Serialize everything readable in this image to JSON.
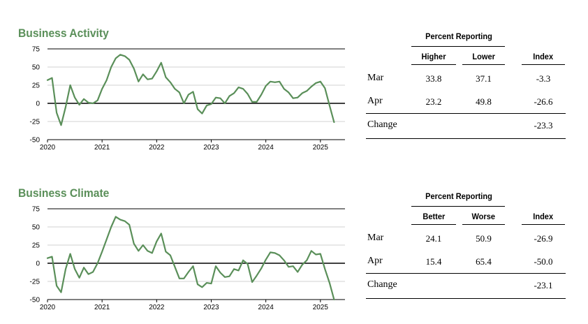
{
  "chart_data": [
    {
      "type": "line",
      "title": "Business Activity",
      "xlabel": "",
      "ylabel": "",
      "xlim": [
        2020.0,
        2025.45
      ],
      "ylim": [
        -50,
        75
      ],
      "x_ticks": [
        "2020",
        "2021",
        "2022",
        "2023",
        "2024",
        "2025"
      ],
      "y_ticks": [
        "75",
        "50",
        "25",
        "0",
        "-25",
        "-50"
      ],
      "grid": true,
      "line_color": "#5a8f59",
      "series": [
        {
          "x": [
            2020.0,
            2020.083,
            2020.167,
            2020.25,
            2020.333,
            2020.417,
            2020.5,
            2020.583,
            2020.667,
            2020.75,
            2020.833,
            2020.917,
            2021.0,
            2021.083,
            2021.167,
            2021.25,
            2021.333,
            2021.417,
            2021.5,
            2021.583,
            2021.667,
            2021.75,
            2021.833,
            2021.917,
            2022.0,
            2022.083,
            2022.167,
            2022.25,
            2022.333,
            2022.417,
            2022.5,
            2022.583,
            2022.667,
            2022.75,
            2022.833,
            2022.917,
            2023.0,
            2023.083,
            2023.167,
            2023.25,
            2023.333,
            2023.417,
            2023.5,
            2023.583,
            2023.667,
            2023.75,
            2023.833,
            2023.917,
            2024.0,
            2024.083,
            2024.167,
            2024.25,
            2024.333,
            2024.417,
            2024.5,
            2024.583,
            2024.667,
            2024.75,
            2024.833,
            2024.917,
            2025.0,
            2025.083,
            2025.167,
            2025.25
          ],
          "y": [
            32,
            35,
            -13,
            -30,
            -5,
            25,
            8,
            -2,
            6,
            1,
            0,
            4,
            20,
            32,
            50,
            62,
            67,
            65,
            60,
            48,
            30,
            40,
            33,
            34,
            44,
            56,
            36,
            29,
            20,
            15,
            0,
            12,
            16,
            -8,
            -14,
            -3,
            -1,
            8,
            7,
            0,
            10,
            14,
            22,
            20,
            13,
            2,
            2,
            12,
            24,
            30,
            29,
            30,
            20,
            15,
            7,
            8,
            14,
            17,
            23,
            28,
            30,
            21,
            -3,
            -26
          ]
        }
      ]
    },
    {
      "type": "line",
      "title": "Business Climate",
      "xlabel": "",
      "ylabel": "",
      "xlim": [
        2020.0,
        2025.45
      ],
      "ylim": [
        -50,
        75
      ],
      "x_ticks": [
        "2020",
        "2021",
        "2022",
        "2023",
        "2024",
        "2025"
      ],
      "y_ticks": [
        "75",
        "50",
        "25",
        "0",
        "-25",
        "-50"
      ],
      "grid": true,
      "line_color": "#5a8f59",
      "series": [
        {
          "x": [
            2020.0,
            2020.083,
            2020.167,
            2020.25,
            2020.333,
            2020.417,
            2020.5,
            2020.583,
            2020.667,
            2020.75,
            2020.833,
            2020.917,
            2021.0,
            2021.083,
            2021.167,
            2021.25,
            2021.333,
            2021.417,
            2021.5,
            2021.583,
            2021.667,
            2021.75,
            2021.833,
            2021.917,
            2022.0,
            2022.083,
            2022.167,
            2022.25,
            2022.333,
            2022.417,
            2022.5,
            2022.583,
            2022.667,
            2022.75,
            2022.833,
            2022.917,
            2023.0,
            2023.083,
            2023.167,
            2023.25,
            2023.333,
            2023.417,
            2023.5,
            2023.583,
            2023.667,
            2023.75,
            2023.833,
            2023.917,
            2024.0,
            2024.083,
            2024.167,
            2024.25,
            2024.333,
            2024.417,
            2024.5,
            2024.583,
            2024.667,
            2024.75,
            2024.833,
            2024.917,
            2025.0,
            2025.083,
            2025.167,
            2025.25
          ],
          "y": [
            7,
            9,
            -31,
            -40,
            -8,
            13,
            -8,
            -20,
            -6,
            -15,
            -12,
            0,
            16,
            33,
            50,
            64,
            60,
            58,
            53,
            27,
            17,
            25,
            17,
            14,
            30,
            41,
            16,
            11,
            -5,
            -21,
            -21,
            -12,
            -4,
            -29,
            -33,
            -27,
            -28,
            -4,
            -13,
            -19,
            -18,
            -8,
            -10,
            4,
            -1,
            -26,
            -17,
            -7,
            5,
            15,
            14,
            11,
            4,
            -5,
            -4,
            -12,
            -2,
            4,
            17,
            12,
            13,
            -8,
            -27,
            -50
          ]
        }
      ]
    }
  ],
  "tables": [
    {
      "group_label": "Percent Reporting",
      "col1": "Higher",
      "col2": "Lower",
      "col3": "Index",
      "rows": [
        {
          "label": "Mar",
          "v1": "33.8",
          "v2": "37.1",
          "v3": "-3.3"
        },
        {
          "label": "Apr",
          "v1": "23.2",
          "v2": "49.8",
          "v3": "-26.6"
        },
        {
          "label": "Change",
          "v1": "",
          "v2": "",
          "v3": "-23.3"
        }
      ]
    },
    {
      "group_label": "Percent Reporting",
      "col1": "Better",
      "col2": "Worse",
      "col3": "Index",
      "rows": [
        {
          "label": "Mar",
          "v1": "24.1",
          "v2": "50.9",
          "v3": "-26.9"
        },
        {
          "label": "Apr",
          "v1": "15.4",
          "v2": "65.4",
          "v3": "-50.0"
        },
        {
          "label": "Change",
          "v1": "",
          "v2": "",
          "v3": "-23.1"
        }
      ]
    }
  ]
}
